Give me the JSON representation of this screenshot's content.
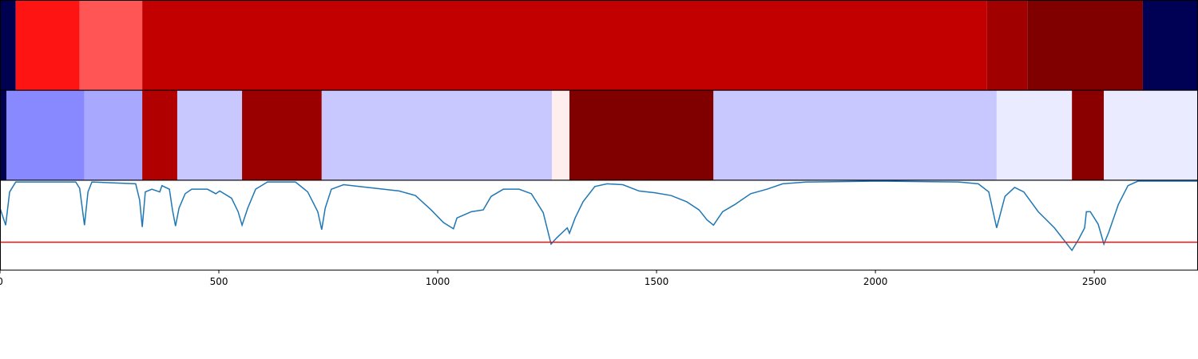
{
  "chart_data": [
    {
      "type": "segments",
      "xlim": [
        0,
        2737
      ],
      "segments": [
        {
          "start": 0,
          "end": 36,
          "color": "#000050"
        },
        {
          "start": 36,
          "end": 182,
          "color": "#ff1414"
        },
        {
          "start": 182,
          "end": 325,
          "color": "#ff5555"
        },
        {
          "start": 325,
          "end": 2255,
          "color": "#c20000"
        },
        {
          "start": 2255,
          "end": 2347,
          "color": "#a00000"
        },
        {
          "start": 2347,
          "end": 2611,
          "color": "#800000"
        },
        {
          "start": 2611,
          "end": 2737,
          "color": "#000055"
        }
      ]
    },
    {
      "type": "segments",
      "xlim": [
        0,
        2737
      ],
      "segments": [
        {
          "start": 0,
          "end": 15,
          "color": "#000050"
        },
        {
          "start": 15,
          "end": 193,
          "color": "#8888ff"
        },
        {
          "start": 193,
          "end": 325,
          "color": "#a8a8ff"
        },
        {
          "start": 325,
          "end": 405,
          "color": "#b00000"
        },
        {
          "start": 405,
          "end": 553,
          "color": "#c8c8ff"
        },
        {
          "start": 553,
          "end": 735,
          "color": "#9a0000"
        },
        {
          "start": 735,
          "end": 1261,
          "color": "#c8c8ff"
        },
        {
          "start": 1261,
          "end": 1301,
          "color": "#ffeeee"
        },
        {
          "start": 1301,
          "end": 1630,
          "color": "#800000"
        },
        {
          "start": 1630,
          "end": 2277,
          "color": "#c8c8ff"
        },
        {
          "start": 2277,
          "end": 2449,
          "color": "#ebebff"
        },
        {
          "start": 2449,
          "end": 2522,
          "color": "#8a0000"
        },
        {
          "start": 2522,
          "end": 2737,
          "color": "#ebebff"
        }
      ]
    },
    {
      "type": "line",
      "xlim": [
        0,
        2737
      ],
      "ylim": [
        0,
        1
      ],
      "color": "#1f77b4",
      "threshold": {
        "value": 0.31,
        "color": "#ee1111"
      },
      "xticks": [
        0,
        500,
        1000,
        1500,
        2000,
        2500
      ],
      "x": [
        0,
        13,
        22,
        36,
        173,
        182,
        193,
        201,
        210,
        310,
        319,
        325,
        332,
        347,
        365,
        370,
        387,
        394,
        401,
        409,
        423,
        438,
        474,
        493,
        502,
        529,
        544,
        553,
        566,
        584,
        611,
        675,
        703,
        726,
        735,
        743,
        757,
        785,
        839,
        912,
        949,
        985,
        1013,
        1036,
        1044,
        1077,
        1104,
        1122,
        1150,
        1186,
        1214,
        1241,
        1259,
        1272,
        1296,
        1301,
        1314,
        1332,
        1359,
        1387,
        1423,
        1460,
        1496,
        1533,
        1569,
        1597,
        1615,
        1630,
        1651,
        1679,
        1715,
        1752,
        1788,
        1843,
        2007,
        2190,
        2235,
        2259,
        2277,
        2296,
        2318,
        2339,
        2372,
        2409,
        2449,
        2464,
        2478,
        2482,
        2491,
        2509,
        2522,
        2533,
        2555,
        2577,
        2600,
        2737
      ],
      "values": [
        0.69,
        0.5,
        0.87,
        0.98,
        0.98,
        0.91,
        0.5,
        0.87,
        0.98,
        0.96,
        0.78,
        0.48,
        0.87,
        0.9,
        0.87,
        0.94,
        0.9,
        0.67,
        0.49,
        0.69,
        0.85,
        0.9,
        0.9,
        0.85,
        0.88,
        0.8,
        0.65,
        0.5,
        0.69,
        0.9,
        0.98,
        0.98,
        0.87,
        0.65,
        0.45,
        0.69,
        0.9,
        0.95,
        0.92,
        0.88,
        0.83,
        0.67,
        0.53,
        0.46,
        0.58,
        0.65,
        0.67,
        0.82,
        0.9,
        0.9,
        0.85,
        0.64,
        0.29,
        0.36,
        0.47,
        0.41,
        0.58,
        0.76,
        0.93,
        0.96,
        0.95,
        0.88,
        0.86,
        0.83,
        0.76,
        0.67,
        0.56,
        0.5,
        0.65,
        0.73,
        0.85,
        0.9,
        0.96,
        0.98,
        0.99,
        0.98,
        0.96,
        0.87,
        0.47,
        0.82,
        0.92,
        0.87,
        0.65,
        0.47,
        0.22,
        0.34,
        0.47,
        0.65,
        0.65,
        0.51,
        0.29,
        0.42,
        0.73,
        0.94,
        0.99,
        0.99
      ]
    }
  ]
}
